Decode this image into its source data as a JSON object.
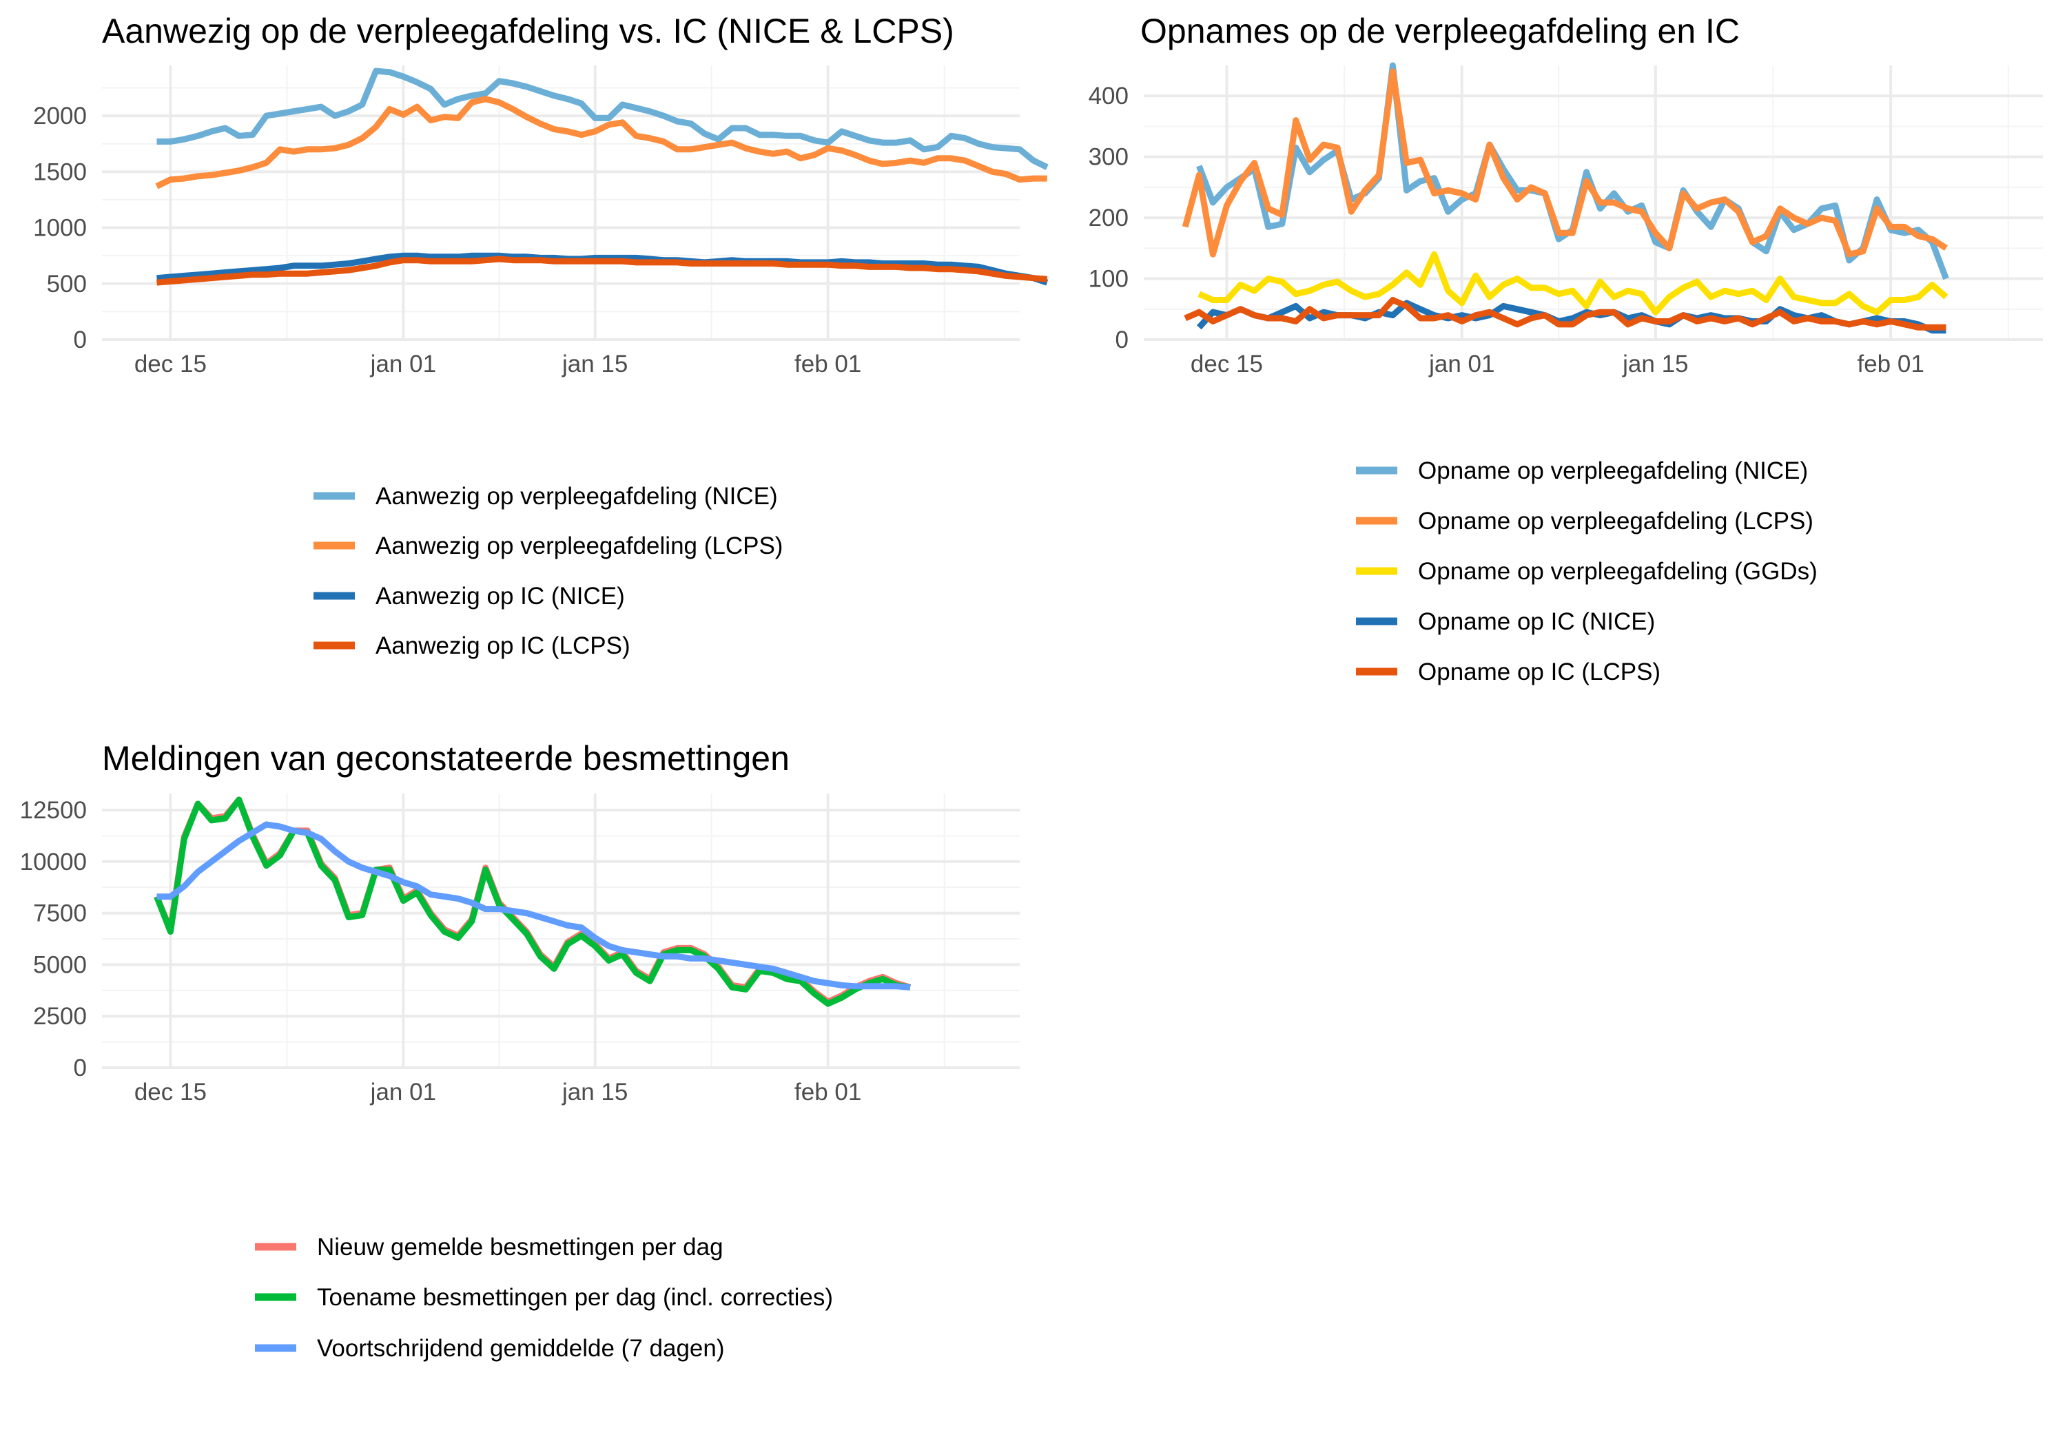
{
  "chart_data": [
    {
      "type": "line",
      "id": "p1",
      "title": "Aanwezig op de verpleegafdeling vs. IC (NICE & LCPS)",
      "x_start": "2020-12-14",
      "x_tick_labels": [
        "dec 15",
        "jan 01",
        "jan 15",
        "feb 01"
      ],
      "y_ticks": [
        0,
        500,
        1000,
        1500,
        2000
      ],
      "ylim": [
        0,
        2450
      ],
      "grid": true,
      "legend_position": "bottom",
      "series": [
        {
          "name": "Aanwezig op verpleegafdeling (NICE)",
          "color": "#6baed6",
          "values": [
            1770,
            1770,
            1790,
            1820,
            1860,
            1890,
            1820,
            1830,
            2000,
            2020,
            2040,
            2060,
            2080,
            2000,
            2040,
            2100,
            2400,
            2390,
            2350,
            2300,
            2240,
            2100,
            2150,
            2180,
            2200,
            2310,
            2290,
            2260,
            2220,
            2180,
            2150,
            2110,
            1980,
            1980,
            2100,
            2070,
            2040,
            2000,
            1950,
            1930,
            1840,
            1790,
            1890,
            1890,
            1830,
            1830,
            1820,
            1820,
            1780,
            1760,
            1860,
            1820,
            1780,
            1760,
            1760,
            1780,
            1700,
            1720,
            1820,
            1800,
            1750,
            1720,
            1710,
            1700,
            1600,
            1540
          ]
        },
        {
          "name": "Aanwezig op verpleegafdeling (LCPS)",
          "color": "#fd8d3c",
          "values": [
            1370,
            1430,
            1440,
            1460,
            1470,
            1490,
            1510,
            1540,
            1580,
            1700,
            1680,
            1700,
            1700,
            1710,
            1740,
            1800,
            1900,
            2060,
            2010,
            2080,
            1960,
            1990,
            1980,
            2120,
            2150,
            2120,
            2060,
            1990,
            1930,
            1880,
            1860,
            1830,
            1860,
            1920,
            1940,
            1820,
            1800,
            1770,
            1700,
            1700,
            1720,
            1740,
            1760,
            1710,
            1680,
            1660,
            1680,
            1620,
            1650,
            1710,
            1690,
            1650,
            1600,
            1570,
            1580,
            1600,
            1580,
            1620,
            1620,
            1600,
            1550,
            1500,
            1480,
            1430,
            1440,
            1440
          ]
        },
        {
          "name": "Aanwezig op IC (NICE)",
          "color": "#2171b5",
          "values": [
            550,
            560,
            570,
            580,
            590,
            600,
            610,
            620,
            630,
            640,
            660,
            660,
            660,
            670,
            680,
            700,
            720,
            740,
            750,
            750,
            740,
            740,
            740,
            750,
            750,
            750,
            740,
            740,
            730,
            730,
            720,
            720,
            730,
            730,
            730,
            730,
            720,
            710,
            710,
            700,
            690,
            700,
            710,
            700,
            700,
            700,
            700,
            690,
            690,
            690,
            700,
            690,
            690,
            680,
            680,
            680,
            680,
            670,
            670,
            660,
            650,
            620,
            590,
            570,
            550,
            510
          ]
        },
        {
          "name": "Aanwezig op IC (LCPS)",
          "color": "#e6550d",
          "values": [
            510,
            520,
            530,
            540,
            550,
            560,
            570,
            580,
            580,
            590,
            590,
            590,
            600,
            610,
            620,
            640,
            660,
            690,
            710,
            710,
            700,
            700,
            700,
            700,
            710,
            720,
            710,
            710,
            710,
            700,
            700,
            700,
            700,
            700,
            700,
            690,
            690,
            690,
            690,
            680,
            680,
            680,
            680,
            680,
            680,
            680,
            670,
            670,
            670,
            670,
            660,
            660,
            650,
            650,
            650,
            640,
            640,
            630,
            630,
            620,
            610,
            590,
            570,
            560,
            550,
            540
          ]
        }
      ]
    },
    {
      "type": "line",
      "id": "p2",
      "title": "Opnames op de verpleegafdeling en IC",
      "x_start": "2020-12-12",
      "x_tick_labels": [
        "dec 15",
        "jan 01",
        "jan 15",
        "feb 01"
      ],
      "y_ticks": [
        0,
        100,
        200,
        300,
        400
      ],
      "ylim": [
        0,
        450
      ],
      "grid": true,
      "legend_position": "bottom",
      "series": [
        {
          "name": "Opname op verpleegafdeling (NICE)",
          "color": "#6baed6",
          "values": [
            null,
            285,
            225,
            250,
            265,
            280,
            185,
            190,
            315,
            275,
            295,
            310,
            230,
            240,
            265,
            450,
            245,
            260,
            265,
            210,
            230,
            240,
            320,
            280,
            245,
            245,
            240,
            165,
            180,
            275,
            215,
            240,
            210,
            220,
            160,
            150,
            245,
            210,
            185,
            230,
            215,
            160,
            145,
            210,
            180,
            190,
            215,
            220,
            130,
            150,
            230,
            180,
            175,
            180,
            160,
            100
          ]
        },
        {
          "name": "Opname op verpleegafdeling (LCPS)",
          "color": "#fd8d3c",
          "values": [
            185,
            270,
            140,
            220,
            260,
            290,
            215,
            205,
            360,
            295,
            320,
            315,
            210,
            245,
            270,
            440,
            290,
            295,
            240,
            245,
            240,
            230,
            320,
            265,
            230,
            250,
            240,
            175,
            175,
            260,
            225,
            225,
            215,
            210,
            175,
            150,
            240,
            215,
            225,
            230,
            210,
            160,
            170,
            215,
            200,
            190,
            200,
            195,
            140,
            145,
            215,
            185,
            185,
            170,
            165,
            150
          ]
        },
        {
          "name": "Opname op verpleegafdeling (GGDs)",
          "color": "#fee000",
          "values": [
            null,
            75,
            65,
            65,
            90,
            80,
            100,
            95,
            75,
            80,
            90,
            95,
            80,
            70,
            75,
            90,
            110,
            90,
            140,
            80,
            60,
            105,
            70,
            90,
            100,
            85,
            85,
            75,
            80,
            55,
            95,
            70,
            80,
            75,
            45,
            70,
            85,
            95,
            70,
            80,
            75,
            80,
            65,
            100,
            70,
            65,
            60,
            60,
            75,
            55,
            45,
            65,
            65,
            70,
            90,
            70
          ]
        },
        {
          "name": "Opname op IC (NICE)",
          "color": "#2171b5",
          "values": [
            null,
            20,
            45,
            40,
            50,
            40,
            35,
            45,
            55,
            35,
            45,
            40,
            40,
            35,
            45,
            40,
            60,
            50,
            40,
            35,
            40,
            35,
            40,
            55,
            50,
            45,
            40,
            30,
            35,
            45,
            40,
            45,
            35,
            40,
            30,
            25,
            40,
            35,
            40,
            35,
            35,
            30,
            30,
            50,
            40,
            35,
            40,
            30,
            25,
            30,
            35,
            30,
            30,
            25,
            15,
            15
          ]
        },
        {
          "name": "Opname op IC (LCPS)",
          "color": "#e6550d",
          "values": [
            35,
            45,
            30,
            40,
            50,
            40,
            35,
            35,
            30,
            50,
            35,
            40,
            40,
            40,
            40,
            65,
            55,
            35,
            35,
            40,
            30,
            40,
            45,
            35,
            25,
            35,
            40,
            25,
            25,
            40,
            45,
            45,
            25,
            35,
            30,
            30,
            40,
            30,
            35,
            30,
            35,
            25,
            35,
            45,
            30,
            35,
            30,
            30,
            25,
            30,
            25,
            30,
            25,
            20,
            20,
            20
          ]
        }
      ]
    },
    {
      "type": "line",
      "id": "p3",
      "title": "Meldingen van geconstateerde besmettingen",
      "x_start": "2020-12-14",
      "x_tick_labels": [
        "dec 15",
        "jan 01",
        "jan 15",
        "feb 01"
      ],
      "y_ticks": [
        0,
        2500,
        5000,
        7500,
        10000,
        12500
      ],
      "ylim": [
        0,
        13300
      ],
      "grid": true,
      "legend_position": "bottom",
      "series": [
        {
          "name": "Nieuw gemelde besmettingen per dag",
          "color": "#f8766d",
          "values": [
            8300,
            6700,
            11200,
            12800,
            12100,
            12200,
            13000,
            11300,
            9900,
            10400,
            11500,
            11500,
            9900,
            9200,
            7400,
            7500,
            9600,
            9700,
            8200,
            8600,
            7500,
            6700,
            6400,
            7200,
            9700,
            8000,
            7300,
            6600,
            5500,
            4900,
            6100,
            6500,
            6000,
            5300,
            5600,
            4700,
            4300,
            5600,
            5800,
            5800,
            5500,
            4900,
            4000,
            3900,
            4800,
            4700,
            4400,
            4300,
            3700,
            3200,
            3500,
            3900,
            4200,
            4400,
            4100,
            3900
          ]
        },
        {
          "name": "Toename besmettingen per dag (incl. correcties)",
          "color": "#00ba38",
          "values": [
            8300,
            6600,
            11100,
            12800,
            12000,
            12100,
            13000,
            11200,
            9800,
            10300,
            11500,
            11400,
            9800,
            9100,
            7300,
            7400,
            9600,
            9600,
            8100,
            8500,
            7400,
            6600,
            6300,
            7100,
            9600,
            7900,
            7200,
            6500,
            5400,
            4800,
            6000,
            6400,
            5900,
            5200,
            5500,
            4600,
            4200,
            5500,
            5700,
            5700,
            5400,
            4800,
            3900,
            3800,
            4700,
            4600,
            4300,
            4200,
            3600,
            3100,
            3400,
            3800,
            4100,
            4300,
            4000,
            3900
          ]
        },
        {
          "name": "Voortschrijdend gemiddelde (7 dagen)",
          "color": "#619cff",
          "values": [
            8300,
            8300,
            8800,
            9500,
            10000,
            10500,
            11000,
            11400,
            11800,
            11700,
            11500,
            11400,
            11100,
            10500,
            10000,
            9700,
            9500,
            9300,
            9000,
            8800,
            8400,
            8300,
            8200,
            8000,
            7700,
            7700,
            7600,
            7500,
            7300,
            7100,
            6900,
            6800,
            6300,
            5900,
            5700,
            5600,
            5500,
            5400,
            5400,
            5300,
            5300,
            5200,
            5100,
            5000,
            4900,
            4800,
            4600,
            4400,
            4200,
            4100,
            4000,
            3950,
            3950,
            3950,
            3950,
            3900
          ]
        }
      ]
    }
  ]
}
